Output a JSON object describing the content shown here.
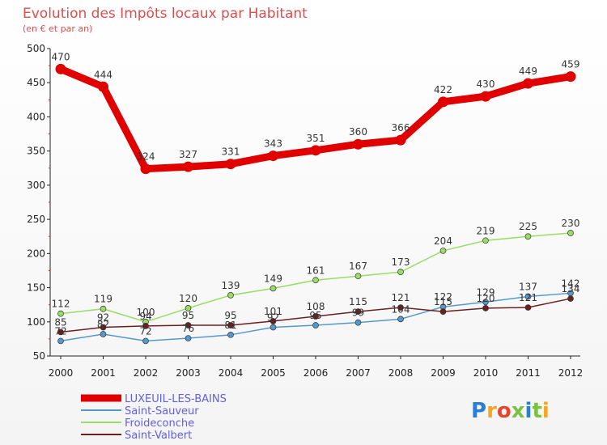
{
  "chart_data": {
    "type": "line",
    "title": "Evolution des Impôts locaux par Habitant",
    "subtitle": "(en € et par an)",
    "x": [
      "2000",
      "2001",
      "2002",
      "2003",
      "2004",
      "2005",
      "2006",
      "2007",
      "2008",
      "2009",
      "2010",
      "2011",
      "2012"
    ],
    "ylim": [
      50,
      500
    ],
    "yticks": [
      50,
      100,
      150,
      200,
      250,
      300,
      350,
      400,
      450,
      500
    ],
    "grid": false,
    "legend_position": "bottom-left",
    "series": [
      {
        "name": "LUXEUIL-LES-BAINS",
        "color": "#e00000",
        "values": [
          470,
          444,
          324,
          327,
          331,
          343,
          351,
          360,
          366,
          422,
          430,
          449,
          459
        ]
      },
      {
        "name": "Saint-Sauveur",
        "color": "#5599cc",
        "values": [
          72,
          82,
          72,
          76,
          81,
          92,
          95,
          99,
          104,
          122,
          129,
          137,
          142
        ]
      },
      {
        "name": "Froideconche",
        "color": "#99dd66",
        "values": [
          112,
          119,
          100,
          120,
          139,
          149,
          161,
          167,
          173,
          204,
          219,
          225,
          230
        ]
      },
      {
        "name": "Saint-Valbert",
        "color": "#6b2020",
        "values": [
          85,
          92,
          94,
          95,
          95,
          101,
          108,
          115,
          121,
          115,
          120,
          121,
          134
        ]
      }
    ]
  },
  "logo": {
    "text": "Proxiti"
  }
}
